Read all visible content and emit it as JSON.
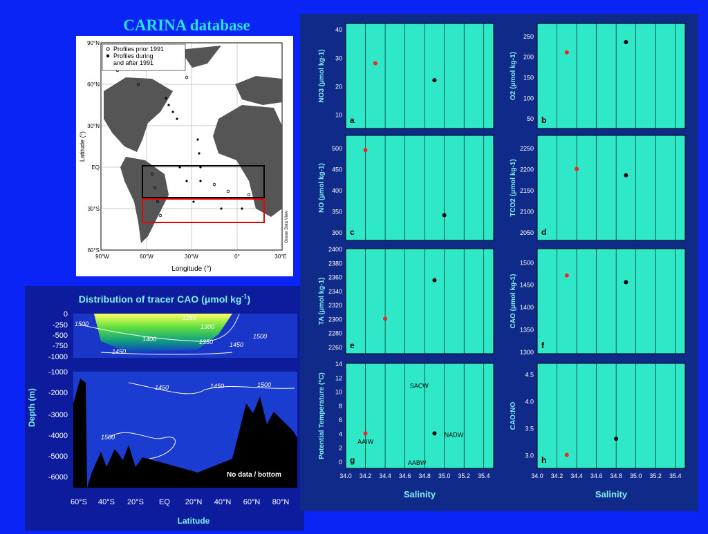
{
  "slide": {
    "title": "CARINA database",
    "colors": {
      "background": "#0a24f5",
      "title": "#23e3e3",
      "panel_bg": "#2ee8c8",
      "series_black": "#000000",
      "series_red": "#ff2020"
    }
  },
  "map": {
    "legend": [
      "Profiles prior 1991",
      "Profiles during",
      "and after 1991"
    ],
    "lat_ticks": [
      "90°N",
      "60°N",
      "30°N",
      "EQ",
      "30°S",
      "60°S"
    ],
    "lon_ticks": [
      "90°W",
      "60°W",
      "30°W",
      "0°",
      "30°E"
    ],
    "ylabel": "Latitude (°)",
    "xlabel": "Longitude (°)",
    "credit": "Ocean Data View"
  },
  "section": {
    "title": "Distribution of tracer CAO (μmol kg",
    "title_sup": "-1",
    "title_end": ")",
    "ylabel": "Depth (m)",
    "xlabel": "Latitude",
    "upper_ticks": [
      "0",
      "-250",
      "-500",
      "-750",
      "-1000"
    ],
    "lower_ticks": [
      "-1000",
      "-2000",
      "-3000",
      "-4000",
      "-5000",
      "-6000"
    ],
    "x_ticks": [
      "60°S",
      "40°S",
      "20°S",
      "EQ",
      "20°N",
      "40°N",
      "60°N",
      "80°N"
    ],
    "contour_labels_upper": [
      "1500",
      "1250",
      "1300",
      "1400",
      "1350",
      "1450",
      "1500",
      "1450"
    ],
    "contour_labels_lower": [
      "1450",
      "1450",
      "1500",
      "1500"
    ],
    "no_data": "No data / bottom"
  },
  "chart_data": [
    {
      "type": "scatter",
      "panel": "a",
      "ylabel": "NO3 (μmol kg-1)",
      "ylim": [
        5,
        42
      ],
      "yticks": [
        "40",
        "30",
        "20",
        "10"
      ],
      "xlim": [
        34.0,
        35.5
      ],
      "series": [
        {
          "name": "Profiles prior 1991",
          "color": "#ff2020",
          "x": [
            34.3
          ],
          "y": [
            28
          ]
        },
        {
          "name": "Profiles during and after 1991",
          "color": "#000000",
          "x": [
            34.9
          ],
          "y": [
            22
          ]
        }
      ]
    },
    {
      "type": "scatter",
      "panel": "b",
      "ylabel": "O2 (μmol kg-1)",
      "ylim": [
        25,
        280
      ],
      "yticks": [
        "250",
        "200",
        "150",
        "100",
        "50"
      ],
      "xlim": [
        34.0,
        35.5
      ],
      "series": [
        {
          "name": "Profiles prior 1991",
          "color": "#ff2020",
          "x": [
            34.3
          ],
          "y": [
            210
          ]
        },
        {
          "name": "Profiles during and after 1991",
          "color": "#000000",
          "x": [
            34.9
          ],
          "y": [
            235
          ]
        }
      ]
    },
    {
      "type": "scatter",
      "panel": "c",
      "ylabel": "NO (μmol kg-1)",
      "ylim": [
        280,
        530
      ],
      "yticks": [
        "500",
        "450",
        "400",
        "350",
        "300"
      ],
      "xlim": [
        34.0,
        35.5
      ],
      "series": [
        {
          "name": "Profiles prior 1991",
          "color": "#ff2020",
          "x": [
            34.2
          ],
          "y": [
            495
          ]
        },
        {
          "name": "Profiles during and after 1991",
          "color": "#000000",
          "x": [
            35.0
          ],
          "y": [
            340
          ]
        }
      ]
    },
    {
      "type": "scatter",
      "panel": "d",
      "ylabel": "TCO2 (μmol kg-1)",
      "ylim": [
        2030,
        2280
      ],
      "yticks": [
        "2250",
        "2200",
        "2150",
        "2100",
        "2050"
      ],
      "xlim": [
        34.0,
        35.5
      ],
      "series": [
        {
          "name": "Profiles prior 1991",
          "color": "#ff2020",
          "x": [
            34.4
          ],
          "y": [
            2200
          ]
        },
        {
          "name": "Profiles during and after 1991",
          "color": "#000000",
          "x": [
            34.9
          ],
          "y": [
            2185
          ]
        }
      ]
    },
    {
      "type": "scatter",
      "panel": "e",
      "ylabel": "TA (μmol kg-1)",
      "ylim": [
        2250,
        2400
      ],
      "yticks": [
        "2400",
        "2380",
        "2360",
        "2340",
        "2320",
        "2300",
        "2280",
        "2260"
      ],
      "xlim": [
        34.0,
        35.5
      ],
      "series": [
        {
          "name": "Profiles prior 1991",
          "color": "#ff2020",
          "x": [
            34.4
          ],
          "y": [
            2300
          ]
        },
        {
          "name": "Profiles during and after 1991",
          "color": "#000000",
          "x": [
            34.9
          ],
          "y": [
            2355
          ]
        }
      ]
    },
    {
      "type": "scatter",
      "panel": "f",
      "ylabel": "CAO (μmol kg-1)",
      "ylim": [
        1295,
        1530
      ],
      "yticks": [
        "1500",
        "1450",
        "1400",
        "1350",
        "1300"
      ],
      "xlim": [
        34.0,
        35.5
      ],
      "series": [
        {
          "name": "Profiles prior 1991",
          "color": "#ff2020",
          "x": [
            34.3
          ],
          "y": [
            1470
          ]
        },
        {
          "name": "Profiles during and after 1991",
          "color": "#000000",
          "x": [
            34.9
          ],
          "y": [
            1455
          ]
        }
      ]
    },
    {
      "type": "scatter",
      "panel": "g",
      "ylabel": "Potential Temperature (°C)",
      "xlabel": "Salinity",
      "ylim": [
        -1,
        14
      ],
      "yticks": [
        "14",
        "12",
        "10",
        "8",
        "6",
        "4",
        "2",
        "0"
      ],
      "xlim": [
        34.0,
        35.5
      ],
      "xticks": [
        "34.0",
        "34.2",
        "34.4",
        "34.6",
        "34.8",
        "35.0",
        "35.2",
        "35.4"
      ],
      "annotations": [
        {
          "text": "SACW",
          "x": 34.65,
          "y": 10.5
        },
        {
          "text": "AAIW",
          "x": 34.12,
          "y": 2.5
        },
        {
          "text": "NADW",
          "x": 35.0,
          "y": 3.5
        },
        {
          "text": "AABW",
          "x": 34.63,
          "y": -0.5
        }
      ],
      "series": [
        {
          "name": "Profiles prior 1991",
          "color": "#ff2020",
          "x": [
            34.2
          ],
          "y": [
            4
          ]
        },
        {
          "name": "Profiles during and after 1991",
          "color": "#000000",
          "x": [
            34.9
          ],
          "y": [
            4
          ]
        }
      ]
    },
    {
      "type": "scatter",
      "panel": "h",
      "ylabel": "CAO:NO",
      "xlabel": "Salinity",
      "ylim": [
        2.75,
        4.7
      ],
      "yticks": [
        "4.5",
        "4.0",
        "3.5",
        "3.0"
      ],
      "xlim": [
        34.0,
        35.5
      ],
      "xticks": [
        "34.0",
        "34.2",
        "34.4",
        "34.6",
        "34.8",
        "35.0",
        "35.2",
        "35.4"
      ],
      "series": [
        {
          "name": "Profiles prior 1991",
          "color": "#ff2020",
          "x": [
            34.3
          ],
          "y": [
            3.0
          ]
        },
        {
          "name": "Profiles during and after 1991",
          "color": "#000000",
          "x": [
            34.8
          ],
          "y": [
            3.3
          ]
        }
      ]
    }
  ]
}
